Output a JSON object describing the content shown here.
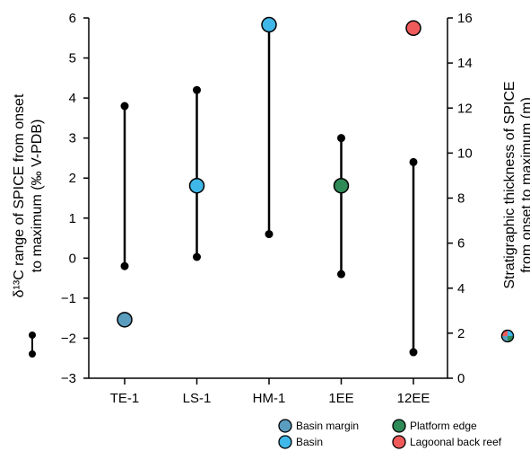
{
  "chart_data": {
    "type": "scatter",
    "categories": [
      "TE-1",
      "LS-1",
      "HM-1",
      "1EE",
      "12EE"
    ],
    "left_axis": {
      "label_line1": "δ¹³C range of SPICE from onset",
      "label_line2": "to maximum (‰ V-PDB)",
      "ylim": [
        -3,
        6
      ],
      "ticks": [
        -3,
        -2,
        -1,
        0,
        1,
        2,
        3,
        4,
        5,
        6
      ]
    },
    "right_axis": {
      "label_line1": "Stratigraphic thickness of SPICE",
      "label_line2": "from onset to maximum (m)",
      "ylim": [
        0,
        16
      ],
      "ticks": [
        0,
        2,
        4,
        6,
        8,
        10,
        12,
        14,
        16
      ]
    },
    "series": [
      {
        "name": "δ13C range",
        "kind": "range",
        "axis": "left",
        "ranges": [
          {
            "category": "TE-1",
            "low": -0.2,
            "high": 3.8
          },
          {
            "category": "LS-1",
            "low": 0.03,
            "high": 4.2
          },
          {
            "category": "HM-1",
            "low": 0.6,
            "high": 5.8
          },
          {
            "category": "1EE",
            "low": -0.4,
            "high": 3.0
          },
          {
            "category": "12EE",
            "low": -2.35,
            "high": 2.4
          }
        ]
      },
      {
        "name": "Stratigraphic thickness",
        "kind": "points",
        "axis": "right",
        "points": [
          {
            "category": "TE-1",
            "value": 2.6,
            "setting": "Basin margin"
          },
          {
            "category": "LS-1",
            "value": 8.55,
            "setting": "Basin"
          },
          {
            "category": "HM-1",
            "value": 15.7,
            "setting": "Basin"
          },
          {
            "category": "1EE",
            "value": 8.55,
            "setting": "Platform edge"
          },
          {
            "category": "12EE",
            "value": 15.55,
            "setting": "Lagoonal back reef"
          }
        ]
      }
    ],
    "legend": [
      {
        "label": "Basin margin",
        "color": "#5a9dbf"
      },
      {
        "label": "Platform edge",
        "color": "#2e8a57"
      },
      {
        "label": "Basin",
        "color": "#3fb7e8"
      },
      {
        "label": "Lagoonal back reef",
        "color": "#ef5b5b"
      }
    ],
    "legend_position": "bottom-right",
    "grid": false
  }
}
